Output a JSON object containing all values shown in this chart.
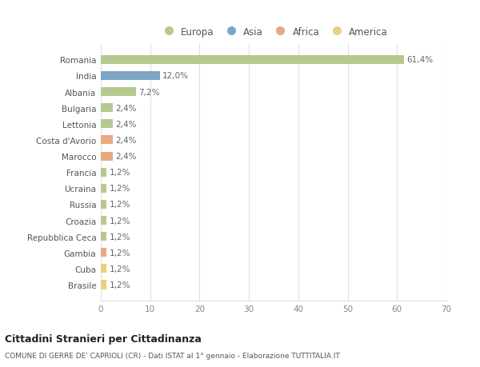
{
  "countries": [
    "Romania",
    "India",
    "Albania",
    "Bulgaria",
    "Lettonia",
    "Costa d'Avorio",
    "Marocco",
    "Francia",
    "Ucraina",
    "Russia",
    "Croazia",
    "Repubblica Ceca",
    "Gambia",
    "Cuba",
    "Brasile"
  ],
  "values": [
    61.4,
    12.0,
    7.2,
    2.4,
    2.4,
    2.4,
    2.4,
    1.2,
    1.2,
    1.2,
    1.2,
    1.2,
    1.2,
    1.2,
    1.2
  ],
  "labels": [
    "61,4%",
    "12,0%",
    "7,2%",
    "2,4%",
    "2,4%",
    "2,4%",
    "2,4%",
    "1,2%",
    "1,2%",
    "1,2%",
    "1,2%",
    "1,2%",
    "1,2%",
    "1,2%",
    "1,2%"
  ],
  "continents": [
    "Europa",
    "Asia",
    "Europa",
    "Europa",
    "Europa",
    "Africa",
    "Africa",
    "Europa",
    "Europa",
    "Europa",
    "Europa",
    "Europa",
    "Africa",
    "America",
    "America"
  ],
  "colors": {
    "Europa": "#b5c98e",
    "Asia": "#7ea6c4",
    "Africa": "#e8a882",
    "America": "#e8d080"
  },
  "legend_items": [
    "Europa",
    "Asia",
    "Africa",
    "America"
  ],
  "legend_colors": [
    "#b5c98e",
    "#7ea6c4",
    "#e8a882",
    "#e8d080"
  ],
  "xlim": [
    0,
    70
  ],
  "xticks": [
    0,
    10,
    20,
    30,
    40,
    50,
    60,
    70
  ],
  "title": "Cittadini Stranieri per Cittadinanza",
  "subtitle": "COMUNE DI GERRE DE' CAPRIOLI (CR) - Dati ISTAT al 1° gennaio - Elaborazione TUTTITALIA.IT",
  "bg_color": "#ffffff",
  "plot_bg_color": "#ffffff",
  "grid_color": "#e0e0e0",
  "bar_height": 0.55
}
